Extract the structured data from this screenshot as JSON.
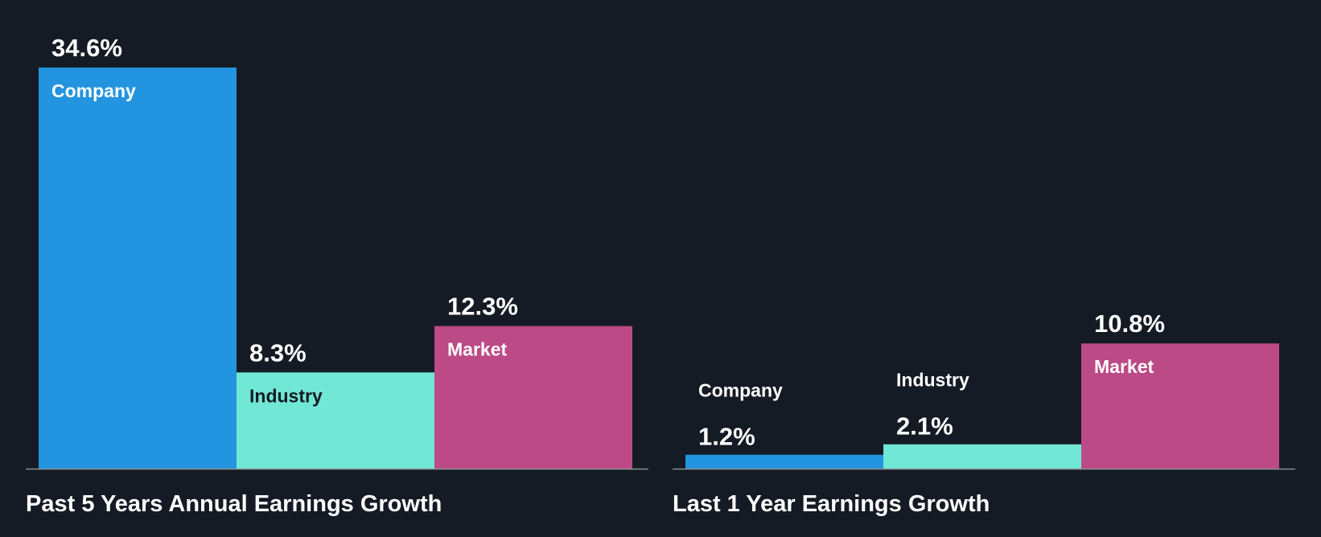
{
  "colors": {
    "background": "#151b24",
    "company": "#2394df",
    "industry": "#71e7d6",
    "market": "#bb4a86",
    "baseline": "#8a8f96",
    "label_light": "#ffffff",
    "label_dark": "#151b24"
  },
  "chart_data": [
    {
      "type": "bar",
      "title": "Past 5 Years Annual Earnings Growth",
      "categories": [
        "Company",
        "Industry",
        "Market"
      ],
      "values": [
        34.6,
        8.3,
        12.3
      ],
      "value_labels": [
        "34.6%",
        "8.3%",
        "12.3%"
      ],
      "bar_colors": [
        "#2394df",
        "#71e7d6",
        "#bb4a86"
      ],
      "ylim": [
        0,
        34.6
      ],
      "grid": false,
      "legend": "none",
      "xlabel": "",
      "ylabel": ""
    },
    {
      "type": "bar",
      "title": "Last 1 Year Earnings Growth",
      "categories": [
        "Company",
        "Industry",
        "Market"
      ],
      "values": [
        1.2,
        2.1,
        10.8
      ],
      "value_labels": [
        "1.2%",
        "2.1%",
        "10.8%"
      ],
      "bar_colors": [
        "#2394df",
        "#71e7d6",
        "#bb4a86"
      ],
      "ylim": [
        0,
        34.6
      ],
      "grid": false,
      "legend": "none",
      "xlabel": "",
      "ylabel": ""
    }
  ]
}
